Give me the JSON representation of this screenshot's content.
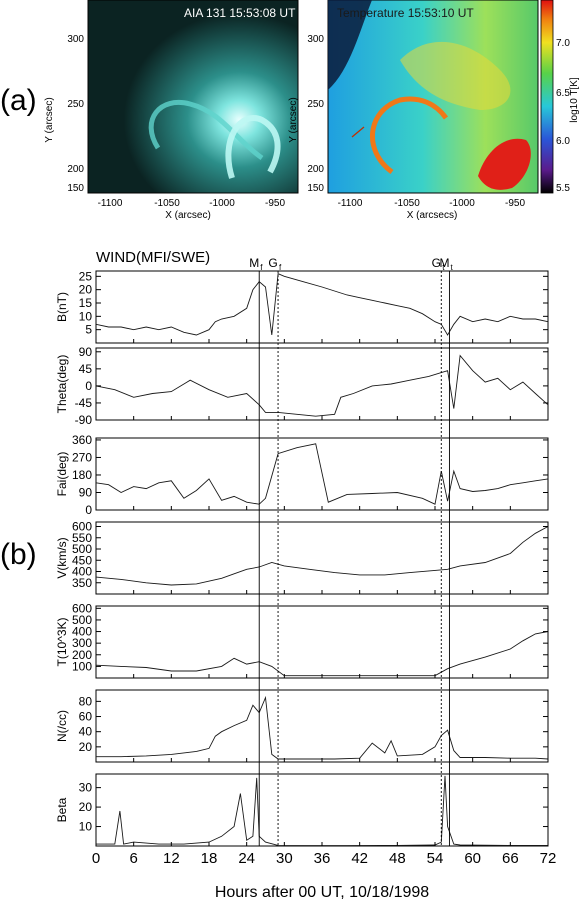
{
  "panel_labels": {
    "a": "(a)",
    "b": "(b)"
  },
  "images": {
    "left": {
      "title": "AIA 131 15:53:08 UT",
      "xlabel": "X (arcsec)",
      "ylabel": "Y (arcsec)",
      "xticks": [
        "-1100",
        "-1050",
        "-1000",
        "-950"
      ],
      "yticks": [
        "300",
        "250",
        "200",
        "150"
      ]
    },
    "right": {
      "title": "Temperature 15:53:10 UT",
      "xlabel": "X (arcsecs)",
      "ylabel": "Y (arcsec)",
      "xticks": [
        "-1100",
        "-1050",
        "-1000",
        "-950"
      ],
      "yticks": [
        "300",
        "250",
        "200",
        "150"
      ],
      "colorbar_label": "log10 T[K]",
      "colorbar_ticks": [
        "7.0",
        "6.5",
        "6.0",
        "5.5"
      ]
    }
  },
  "colors": {
    "background": "#ffffff",
    "axis": "#000000",
    "trace": "#1a1a1a",
    "aia_glow": "#9ff5f0",
    "aia_dark": "#0a1c1c"
  },
  "chart_data": {
    "type": "line",
    "title": "WIND(MFI/SWE)",
    "xlabel": "Hours after 00 UT, 10/18/1998",
    "xlim": [
      0,
      72
    ],
    "xticks": [
      0,
      6,
      12,
      18,
      24,
      30,
      36,
      42,
      48,
      54,
      60,
      66,
      72
    ],
    "markers": [
      {
        "label_main": "M",
        "label_sub": "f",
        "x": 26.0,
        "style": "solid"
      },
      {
        "label_main": "G",
        "label_sub": "f",
        "x": 29.0,
        "style": "dotted"
      },
      {
        "label_main": "G",
        "label_sub": "t",
        "x": 55.0,
        "style": "dotted"
      },
      {
        "label_main": "M",
        "label_sub": "t",
        "x": 56.3,
        "style": "solid"
      }
    ],
    "series": [
      {
        "name": "B(nT)",
        "ylim": [
          0,
          27
        ],
        "yticks": [
          5,
          10,
          15,
          20,
          25
        ],
        "x": [
          0,
          2,
          4,
          6,
          8,
          10,
          12,
          14,
          16,
          18,
          19,
          20,
          22,
          24,
          25,
          26,
          27,
          28,
          29,
          30,
          33,
          36,
          40,
          42,
          44,
          46,
          48,
          50,
          52,
          54,
          55,
          56,
          57,
          58,
          60,
          62,
          64,
          66,
          68,
          70,
          72
        ],
        "y": [
          7,
          6,
          6,
          5,
          6,
          5,
          6,
          4,
          3,
          5,
          8,
          9,
          10,
          13,
          20,
          23,
          21,
          3,
          26,
          25,
          23,
          21,
          18,
          17,
          16,
          15,
          14,
          13,
          11,
          8,
          7,
          3,
          7,
          10,
          8,
          9,
          8,
          10,
          9,
          9,
          8
        ]
      },
      {
        "name": "Theta(deg)",
        "ylim": [
          -90,
          100
        ],
        "yticks": [
          -90,
          -45,
          0,
          45,
          90
        ],
        "x": [
          0,
          3,
          6,
          9,
          12,
          15,
          18,
          21,
          24,
          26,
          27,
          29,
          32,
          35,
          38,
          39,
          41,
          44,
          47,
          50,
          53,
          55,
          56,
          57,
          58,
          60,
          62,
          64,
          66,
          68,
          70,
          72
        ],
        "y": [
          0,
          -10,
          -30,
          -20,
          -15,
          15,
          -10,
          -30,
          -20,
          -50,
          -70,
          -70,
          -75,
          -80,
          -75,
          -30,
          -20,
          0,
          5,
          15,
          25,
          35,
          40,
          -60,
          80,
          40,
          10,
          20,
          -10,
          10,
          -20,
          -50
        ]
      },
      {
        "name": "Fai(deg)",
        "ylim": [
          0,
          370
        ],
        "yticks": [
          0,
          90,
          180,
          270,
          360
        ],
        "x": [
          0,
          2,
          4,
          6,
          8,
          10,
          12,
          14,
          16,
          18,
          20,
          22,
          24,
          26,
          27,
          29,
          32,
          35,
          37,
          40,
          44,
          48,
          52,
          54,
          55,
          56,
          57,
          58,
          60,
          62,
          64,
          66,
          68,
          70,
          72
        ],
        "y": [
          140,
          130,
          90,
          120,
          110,
          140,
          150,
          60,
          100,
          160,
          50,
          70,
          40,
          30,
          60,
          290,
          320,
          340,
          40,
          80,
          85,
          90,
          60,
          30,
          200,
          45,
          200,
          110,
          95,
          100,
          110,
          130,
          140,
          150,
          160
        ]
      },
      {
        "name": "V(km/s)",
        "ylim": [
          300,
          620
        ],
        "yticks": [
          350,
          400,
          450,
          500,
          550,
          600
        ],
        "x": [
          0,
          4,
          8,
          12,
          16,
          20,
          22,
          24,
          26,
          28,
          30,
          34,
          38,
          42,
          46,
          50,
          54,
          56,
          58,
          62,
          66,
          68,
          70,
          72
        ],
        "y": [
          375,
          365,
          350,
          340,
          345,
          370,
          390,
          410,
          420,
          440,
          425,
          410,
          395,
          385,
          385,
          395,
          405,
          410,
          425,
          440,
          480,
          530,
          570,
          600
        ]
      },
      {
        "name": "T(10^3K)",
        "ylim": [
          0,
          620
        ],
        "yticks": [
          100,
          200,
          300,
          400,
          500,
          600
        ],
        "x": [
          0,
          4,
          8,
          12,
          16,
          20,
          22,
          24,
          26,
          28,
          30,
          34,
          38,
          42,
          46,
          50,
          54,
          56,
          58,
          62,
          66,
          68,
          70,
          72
        ],
        "y": [
          110,
          100,
          90,
          60,
          60,
          100,
          170,
          120,
          140,
          100,
          20,
          20,
          20,
          20,
          20,
          20,
          20,
          80,
          120,
          180,
          250,
          320,
          380,
          400
        ]
      },
      {
        "name": "N(/cc)",
        "ylim": [
          0,
          95
        ],
        "yticks": [
          20,
          40,
          60,
          80
        ],
        "x": [
          0,
          4,
          8,
          12,
          16,
          18,
          19,
          20,
          22,
          24,
          25,
          26,
          27,
          28,
          29,
          32,
          38,
          42,
          44,
          46,
          47,
          48,
          52,
          54,
          55,
          56,
          57,
          58,
          62,
          66,
          70,
          72
        ],
        "y": [
          7,
          7,
          8,
          10,
          14,
          18,
          34,
          40,
          48,
          55,
          75,
          65,
          85,
          10,
          4,
          4,
          4,
          5,
          25,
          12,
          28,
          8,
          10,
          20,
          35,
          42,
          15,
          6,
          6,
          5,
          5,
          4
        ]
      },
      {
        "name": "Beta",
        "ylim": [
          0,
          37
        ],
        "yticks": [
          10,
          20,
          30
        ],
        "x": [
          0,
          3,
          3.8,
          4.4,
          6,
          10,
          14,
          18,
          20,
          22,
          23,
          24,
          25,
          25.6,
          26,
          27,
          29,
          34,
          40,
          48,
          54,
          55,
          55.6,
          56,
          57,
          58,
          62,
          66,
          72
        ],
        "y": [
          1,
          1,
          18,
          1,
          2,
          1,
          1,
          2,
          5,
          10,
          27,
          3,
          5,
          35,
          5,
          2,
          0.3,
          0.2,
          0.2,
          0.3,
          0.5,
          2,
          36,
          10,
          1,
          0.5,
          0.4,
          0.3,
          0.3
        ]
      }
    ]
  }
}
